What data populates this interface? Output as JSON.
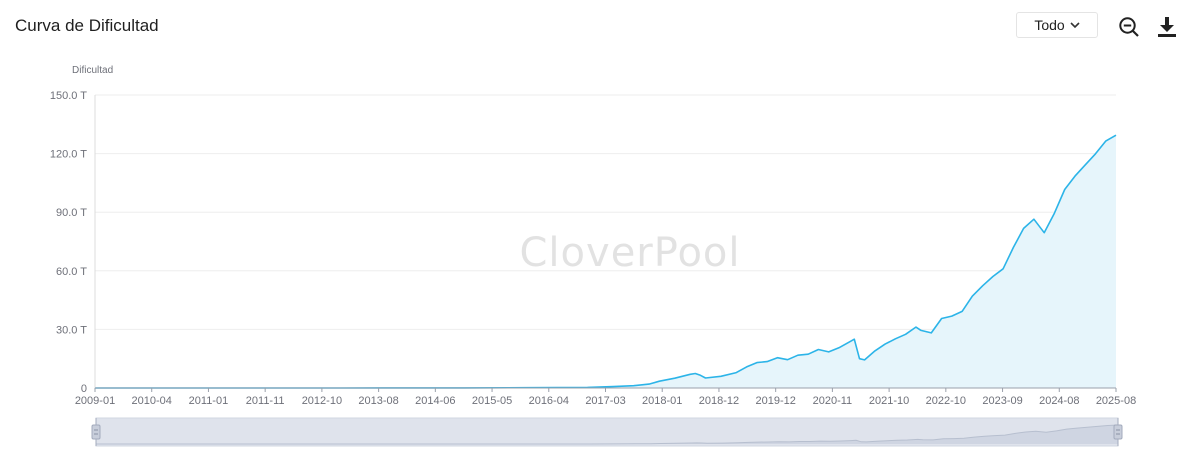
{
  "header": {
    "title": "Curva de Dificultad",
    "range_select": "Todo",
    "zoom_icon": "zoom-out-icon",
    "download_icon": "download-icon"
  },
  "watermark": "CloverPool",
  "colors": {
    "line": "#2cb4e8",
    "area": "#e6f5fb",
    "grid": "#eeeeee",
    "axis": "#6e7079",
    "slider_bg": "#dfe3ec",
    "slider_handle": "#a3abbd"
  },
  "chart_data": {
    "type": "area",
    "title": "Curva de Dificultad",
    "ylabel": "Dificultad",
    "xlabel": "",
    "unit": "T",
    "ylim": [
      0,
      150
    ],
    "yticks": [
      0,
      30,
      60,
      90,
      120,
      150
    ],
    "ytick_labels": [
      "0",
      "30.0 T",
      "60.0 T",
      "90.0 T",
      "120.0 T",
      "150.0 T"
    ],
    "xlim": [
      "2009-01",
      "2025-08"
    ],
    "xtick_labels": [
      "2009-01",
      "2010-04",
      "2011-01",
      "2011-11",
      "2012-10",
      "2013-08",
      "2014-06",
      "2015-05",
      "2016-04",
      "2017-03",
      "2018-01",
      "2018-12",
      "2019-12",
      "2020-11",
      "2021-10",
      "2022-10",
      "2023-09",
      "2024-08",
      "2025-08"
    ],
    "grid": true,
    "series": [
      {
        "x": [
          "2009-01",
          "2013-01",
          "2015-01",
          "2016-01",
          "2017-01",
          "2017-06",
          "2017-10",
          "2018-01",
          "2018-03",
          "2018-06",
          "2018-09",
          "2018-10",
          "2018-11",
          "2018-12",
          "2019-03",
          "2019-06",
          "2019-08",
          "2019-10",
          "2019-12",
          "2020-02",
          "2020-04",
          "2020-06",
          "2020-08",
          "2020-10",
          "2020-12",
          "2021-02",
          "2021-04",
          "2021-05",
          "2021-06",
          "2021-07",
          "2021-09",
          "2021-11",
          "2022-01",
          "2022-03",
          "2022-05",
          "2022-06",
          "2022-08",
          "2022-10",
          "2022-12",
          "2023-02",
          "2023-04",
          "2023-06",
          "2023-08",
          "2023-10",
          "2023-12",
          "2024-02",
          "2024-04",
          "2024-06",
          "2024-08",
          "2024-10",
          "2024-12",
          "2025-02",
          "2025-04",
          "2025-06",
          "2025-08"
        ],
        "values": [
          0,
          0.002,
          0.05,
          0.15,
          0.3,
          0.7,
          1.2,
          2.0,
          3.5,
          5.0,
          7.0,
          7.4,
          6.5,
          5.1,
          6.0,
          7.9,
          10.8,
          13.0,
          13.5,
          15.5,
          14.5,
          16.8,
          17.3,
          19.7,
          18.5,
          20.6,
          23.5,
          25.0,
          15.0,
          14.4,
          19.0,
          22.5,
          25.2,
          27.5,
          31.2,
          29.5,
          28.2,
          35.6,
          36.8,
          39.2,
          47.0,
          52.3,
          57.1,
          61.0,
          72.0,
          81.7,
          86.4,
          79.5,
          89.5,
          101.6,
          108.5,
          114.2,
          119.9,
          126.4,
          129.4
        ]
      }
    ]
  }
}
